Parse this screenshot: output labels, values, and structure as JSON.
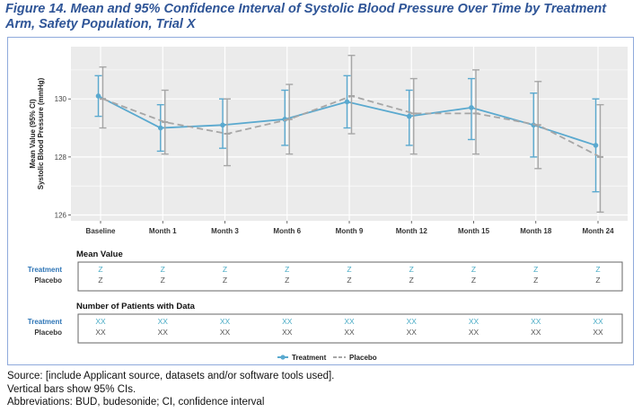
{
  "figure": {
    "title": "Figure 14. Mean and 95% Confidence Interval of Systolic Blood Pressure Over Time by Treatment Arm, Safety Population, Trial X"
  },
  "colors": {
    "title": "#2f5597",
    "treatment": "#5aa9cf",
    "placebo": "#a6a6a6",
    "treatment_label": "#2e75b6",
    "treatment_row_value": "#4bacc6",
    "placebo_row_value": "#555555",
    "plot_bg": "#ebebeb",
    "grid": "#ffffff",
    "frame": "#8faadc"
  },
  "chart_data": {
    "type": "line",
    "ylabel_line1": "Mean Value (95% CI)",
    "ylabel_line2": "Systolic Blood Pressure (mmHg)",
    "xlabel": "",
    "categories": [
      "Baseline",
      "Month 1",
      "Month 3",
      "Month 6",
      "Month 9",
      "Month 12",
      "Month 15",
      "Month 18",
      "Month 24"
    ],
    "ylim": [
      125.8,
      131.8
    ],
    "yticks": [
      126,
      128,
      130
    ],
    "grid": true,
    "legend_position": "bottom",
    "series": [
      {
        "name": "Treatment",
        "style": "solid",
        "values": [
          130.1,
          129.0,
          129.1,
          129.3,
          129.9,
          129.4,
          129.7,
          129.1,
          128.4
        ],
        "ci_low": [
          129.4,
          128.2,
          128.3,
          128.4,
          129.0,
          128.4,
          128.6,
          128.0,
          126.8
        ],
        "ci_high": [
          130.8,
          129.8,
          130.0,
          130.3,
          130.8,
          130.3,
          130.7,
          130.2,
          130.0
        ]
      },
      {
        "name": "Placebo",
        "style": "dashed",
        "values": [
          130.0,
          129.2,
          128.8,
          129.3,
          130.1,
          129.5,
          129.5,
          129.1,
          128.0
        ],
        "ci_low": [
          129.0,
          128.1,
          127.7,
          128.1,
          128.8,
          128.1,
          128.1,
          127.6,
          126.1
        ],
        "ci_high": [
          131.1,
          130.3,
          130.0,
          130.5,
          131.5,
          130.7,
          131.0,
          130.6,
          129.8
        ]
      }
    ]
  },
  "mean_table": {
    "title": "Mean Value",
    "row_labels": [
      "Treatment",
      "Placebo"
    ],
    "treatment_values": [
      "Z",
      "Z",
      "Z",
      "Z",
      "Z",
      "Z",
      "Z",
      "Z",
      "Z"
    ],
    "placebo_values": [
      "Z",
      "Z",
      "Z",
      "Z",
      "Z",
      "Z",
      "Z",
      "Z",
      "Z"
    ]
  },
  "n_table": {
    "title": "Number of Patients with Data",
    "row_labels": [
      "Treatment",
      "Placebo"
    ],
    "treatment_values": [
      "XX",
      "XX",
      "XX",
      "XX",
      "XX",
      "XX",
      "XX",
      "XX",
      "XX"
    ],
    "placebo_values": [
      "XX",
      "XX",
      "XX",
      "XX",
      "XX",
      "XX",
      "XX",
      "XX",
      "XX"
    ]
  },
  "legend": {
    "items": [
      "Treatment",
      "Placebo"
    ]
  },
  "notes": {
    "source": "Source: [include Applicant source, datasets and/or software tools used].",
    "bars": "Vertical bars show 95% CIs.",
    "abbreviations": "Abbreviations: BUD, budesonide; CI, confidence interval"
  }
}
